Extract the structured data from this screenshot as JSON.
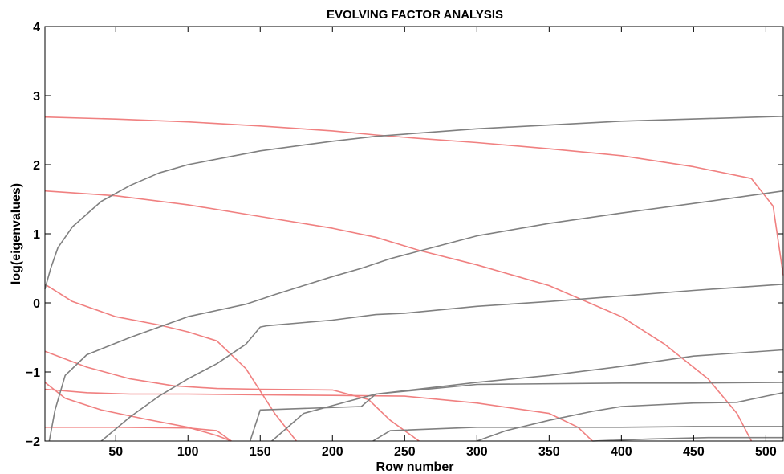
{
  "chart_data": {
    "type": "line",
    "title": "EVOLVING FACTOR ANALYSIS",
    "xlabel": "Row number",
    "ylabel": "log(eigenvalues)",
    "xlim": [
      1,
      512
    ],
    "ylim": [
      -2,
      4
    ],
    "xticks": [
      50,
      100,
      150,
      200,
      250,
      300,
      350,
      400,
      450,
      500
    ],
    "yticks": [
      -2,
      -1,
      0,
      1,
      2,
      3,
      4
    ],
    "grid": false,
    "legend": "none",
    "colors": {
      "forward": "#f08080",
      "backward": "#808080",
      "frame": "#000000"
    },
    "series": [
      {
        "group": "forward",
        "x": [
          1,
          50,
          100,
          150,
          200,
          230,
          260,
          300,
          350,
          400,
          450,
          490,
          505,
          512
        ],
        "y": [
          2.69,
          2.66,
          2.62,
          2.56,
          2.49,
          2.43,
          2.38,
          2.32,
          2.23,
          2.13,
          1.97,
          1.8,
          1.4,
          0.4
        ]
      },
      {
        "group": "forward",
        "x": [
          1,
          50,
          100,
          150,
          200,
          230,
          260,
          300,
          350,
          400,
          430,
          460,
          480,
          490
        ],
        "y": [
          1.62,
          1.55,
          1.42,
          1.25,
          1.08,
          0.95,
          0.76,
          0.55,
          0.25,
          -0.2,
          -0.6,
          -1.1,
          -1.6,
          -2.0
        ]
      },
      {
        "group": "forward",
        "x": [
          1,
          20,
          50,
          80,
          100,
          120,
          140,
          160,
          175
        ],
        "y": [
          0.27,
          0.02,
          -0.2,
          -0.32,
          -0.42,
          -0.55,
          -0.95,
          -1.6,
          -2.0
        ]
      },
      {
        "group": "forward",
        "x": [
          1,
          30,
          60,
          90,
          120,
          150,
          200,
          225,
          240,
          260
        ],
        "y": [
          -0.7,
          -0.93,
          -1.1,
          -1.2,
          -1.24,
          -1.25,
          -1.26,
          -1.4,
          -1.7,
          -2.0
        ]
      },
      {
        "group": "forward",
        "x": [
          1,
          30,
          60,
          100,
          150,
          200,
          250,
          300,
          350,
          370,
          380
        ],
        "y": [
          -1.25,
          -1.3,
          -1.32,
          -1.32,
          -1.33,
          -1.34,
          -1.35,
          -1.45,
          -1.6,
          -1.8,
          -2.0
        ]
      },
      {
        "group": "forward",
        "x": [
          1,
          15,
          40,
          70,
          100,
          120,
          130
        ],
        "y": [
          -1.15,
          -1.38,
          -1.55,
          -1.68,
          -1.8,
          -1.92,
          -2.0
        ]
      },
      {
        "group": "forward",
        "x": [
          1,
          50,
          100,
          120,
          130
        ],
        "y": [
          -1.8,
          -1.8,
          -1.81,
          -1.85,
          -2.0
        ]
      },
      {
        "group": "backward",
        "x": [
          1,
          5,
          10,
          20,
          40,
          60,
          80,
          100,
          150,
          200,
          230,
          300,
          400,
          512
        ],
        "y": [
          0.2,
          0.5,
          0.8,
          1.1,
          1.47,
          1.7,
          1.88,
          2.0,
          2.2,
          2.34,
          2.41,
          2.52,
          2.63,
          2.7
        ]
      },
      {
        "group": "backward",
        "x": [
          4,
          8,
          15,
          30,
          60,
          100,
          140,
          160,
          200,
          220,
          240,
          260,
          300,
          350,
          400,
          450,
          512
        ],
        "y": [
          -2.0,
          -1.55,
          -1.05,
          -0.75,
          -0.5,
          -0.2,
          -0.02,
          0.12,
          0.38,
          0.5,
          0.64,
          0.75,
          0.97,
          1.15,
          1.3,
          1.44,
          1.62
        ]
      },
      {
        "group": "backward",
        "x": [
          40,
          60,
          80,
          100,
          120,
          140,
          150,
          155,
          200,
          230,
          250,
          300,
          350,
          400,
          450,
          512
        ],
        "y": [
          -2.0,
          -1.65,
          -1.35,
          -1.1,
          -0.88,
          -0.6,
          -0.35,
          -0.33,
          -0.25,
          -0.17,
          -0.15,
          -0.05,
          0.02,
          0.1,
          0.18,
          0.27
        ]
      },
      {
        "group": "backward",
        "x": [
          143,
          150,
          220,
          230,
          300,
          350,
          400,
          450,
          512
        ],
        "y": [
          -2.0,
          -1.55,
          -1.5,
          -1.32,
          -1.15,
          -1.05,
          -0.92,
          -0.77,
          -0.68
        ]
      },
      {
        "group": "backward",
        "x": [
          158,
          180,
          210,
          230,
          300,
          400,
          450,
          512
        ],
        "y": [
          -2.0,
          -1.6,
          -1.43,
          -1.32,
          -1.18,
          -1.16,
          -1.16,
          -1.15
        ]
      },
      {
        "group": "backward",
        "x": [
          228,
          240,
          300,
          350,
          400,
          450,
          500,
          512
        ],
        "y": [
          -2.0,
          -1.85,
          -1.8,
          -1.8,
          -1.8,
          -1.79,
          -1.79,
          -1.79
        ]
      },
      {
        "group": "backward",
        "x": [
          300,
          320,
          350,
          380,
          400,
          450,
          480,
          500,
          512
        ],
        "y": [
          -2.0,
          -1.85,
          -1.7,
          -1.57,
          -1.5,
          -1.45,
          -1.44,
          -1.35,
          -1.3
        ]
      },
      {
        "group": "backward",
        "x": [
          380,
          420,
          460,
          500,
          512
        ],
        "y": [
          -2.0,
          -1.97,
          -1.95,
          -1.95,
          -1.95
        ]
      }
    ]
  }
}
